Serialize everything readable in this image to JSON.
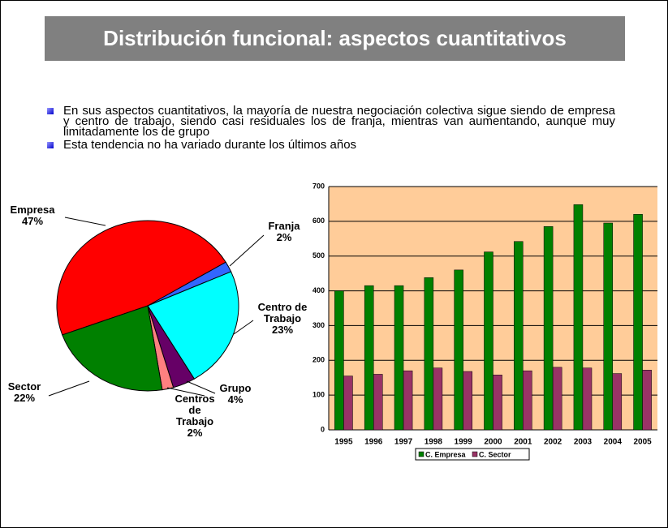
{
  "slide": {
    "title": "Distribución funcional: aspectos cuantitativos",
    "bullets": [
      "En sus aspectos cuantitativos, la mayoría de nuestra negociación colectiva sigue siendo de empresa y centro de trabajo, siendo casi residuales los de franja, mientras van aumentando, aunque muy limitadamente  los de grupo",
      "Esta tendencia no ha variado durante los últimos años"
    ]
  },
  "chart_data": [
    {
      "type": "pie",
      "categories": [
        "Empresa",
        "Franja",
        "Centro de Trabajo",
        "Grupo",
        "Centros de Trabajo",
        "Sector"
      ],
      "values": [
        47,
        2,
        23,
        4,
        2,
        22
      ],
      "value_labels": [
        "47%",
        "2%",
        "23%",
        "4%",
        "2%",
        "22%"
      ],
      "colors": [
        "#ff0000",
        "#3366ff",
        "#00ffff",
        "#660066",
        "#ff8080",
        "#008000"
      ]
    },
    {
      "type": "bar",
      "categories": [
        "1995",
        "1996",
        "1997",
        "1998",
        "1999",
        "2000",
        "2001",
        "2002",
        "2003",
        "2004",
        "2005"
      ],
      "series": [
        {
          "name": "C. Empresa",
          "color": "#008000",
          "values": [
            400,
            415,
            415,
            438,
            460,
            512,
            542,
            585,
            648,
            595,
            620
          ]
        },
        {
          "name": "C. Sector",
          "color": "#993366",
          "values": [
            155,
            160,
            170,
            178,
            168,
            158,
            170,
            180,
            178,
            162,
            172
          ]
        }
      ],
      "ylim": [
        0,
        700
      ],
      "yticks": [
        0,
        100,
        200,
        300,
        400,
        500,
        600,
        700
      ],
      "grid": true,
      "plot_background": "#ffcc99",
      "legend": "bottom"
    }
  ]
}
